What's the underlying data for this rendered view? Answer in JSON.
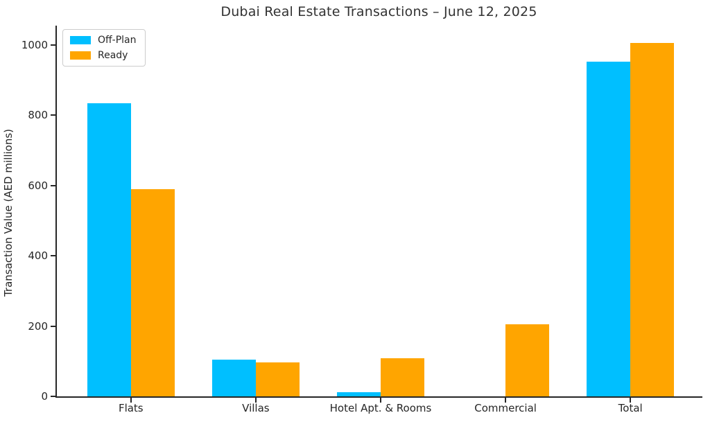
{
  "title": "Dubai Real Estate Transactions – June 12, 2025",
  "chart_data": {
    "type": "bar",
    "title": "Dubai Real Estate Transactions – June 12, 2025",
    "xlabel": "",
    "ylabel": "Transaction Value (AED millions)",
    "categories": [
      "Flats",
      "Villas",
      "Hotel Apt. & Rooms",
      "Commercial",
      "Total"
    ],
    "series": [
      {
        "name": "Off-Plan",
        "color": "#00BFFF",
        "values": [
          835,
          105,
          12,
          0,
          953
        ]
      },
      {
        "name": "Ready",
        "color": "#FFA500",
        "values": [
          590,
          96,
          108,
          205,
          1006
        ]
      }
    ],
    "ylim": [
      0,
      1055
    ],
    "yticks": [
      0,
      200,
      400,
      600,
      800,
      1000
    ],
    "grid": false,
    "legend_position": "upper left",
    "axis_color": "#262626",
    "text_color": "#262626",
    "background_color": "#ffffff"
  }
}
